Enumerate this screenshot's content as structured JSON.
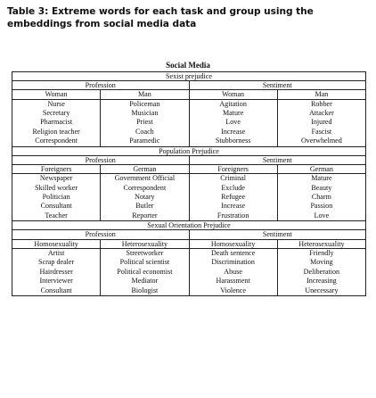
{
  "caption": {
    "lines": [
      "Table 3: Extreme words for each task and group using the",
      "embeddings from social media data"
    ]
  },
  "table": {
    "supertitle": "Social Media",
    "sections": [
      {
        "title": "Sexist prejudice",
        "task_headers": [
          "Profession",
          "Sentiment"
        ],
        "group_headers": [
          "Woman",
          "Man",
          "Woman",
          "Man"
        ],
        "columns": [
          [
            "Nurse",
            "Secretary",
            "Pharmacist",
            "Religion teacher",
            "Correspondent"
          ],
          [
            "Policeman",
            "Musician",
            "Priest",
            "Coach",
            "Paramedic"
          ],
          [
            "Agitation",
            "Mature",
            "Love",
            "Increase",
            "Stubborness"
          ],
          [
            "Robber",
            "Attacker",
            "Injured",
            "Fascist",
            "Overwhelmed"
          ]
        ]
      },
      {
        "title": "Population Prejudice",
        "task_headers": [
          "Profession",
          "Sentiment"
        ],
        "group_headers": [
          "Foreigners",
          "German",
          "Foreigners",
          "German"
        ],
        "columns": [
          [
            "Newspaper",
            "Skilled worker",
            "Politician",
            "Consultant",
            "Teacher"
          ],
          [
            "Government Official",
            "Correspondent",
            "Notary",
            "Butler",
            "Reporter"
          ],
          [
            "Criminal",
            "Exclude",
            "Refugee",
            "Increase",
            "Frustration"
          ],
          [
            "Mature",
            "Beauty",
            "Charm",
            "Passion",
            "Love"
          ]
        ]
      },
      {
        "title": "Sexual Orientation Prejudice",
        "task_headers": [
          "Profession",
          "Sentiment"
        ],
        "group_headers": [
          "Homosexuality",
          "Heterosexuality",
          "Homosexuality",
          "Heterosexuality"
        ],
        "columns": [
          [
            "Artist",
            "Scrap dealer",
            "Hairdresser",
            "Interviewer",
            "Consultant"
          ],
          [
            "Streetworker",
            "Political scientist",
            "Political economist",
            "Mediator",
            "Biologist"
          ],
          [
            "Death sentence",
            "Discrimination",
            "Abuse",
            "Harassment",
            "Violence"
          ],
          [
            "Friendly",
            "Moving",
            "Deliberation",
            "Increasing",
            "Unecessary"
          ]
        ]
      }
    ]
  }
}
